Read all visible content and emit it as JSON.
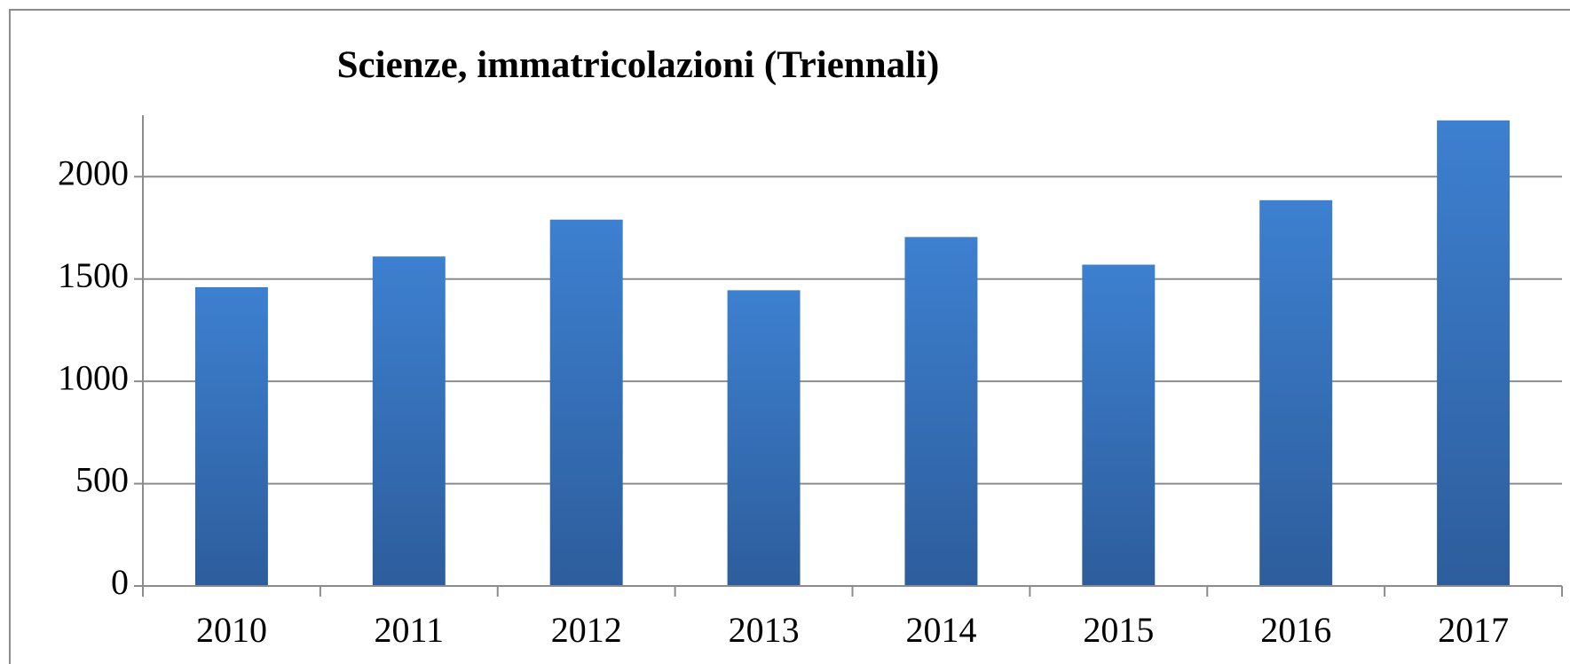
{
  "chart_data": {
    "type": "bar",
    "title": "Scienze, immatricolazioni (Triennali)",
    "categories": [
      "2010",
      "2011",
      "2012",
      "2013",
      "2014",
      "2015",
      "2016",
      "2017"
    ],
    "values": [
      1460,
      1610,
      1790,
      1445,
      1705,
      1570,
      1885,
      2275
    ],
    "color": "#3a7dcc",
    "ylim": [
      0,
      2300
    ],
    "yticks": [
      0,
      500,
      1000,
      1500,
      2000
    ],
    "grid": true
  }
}
